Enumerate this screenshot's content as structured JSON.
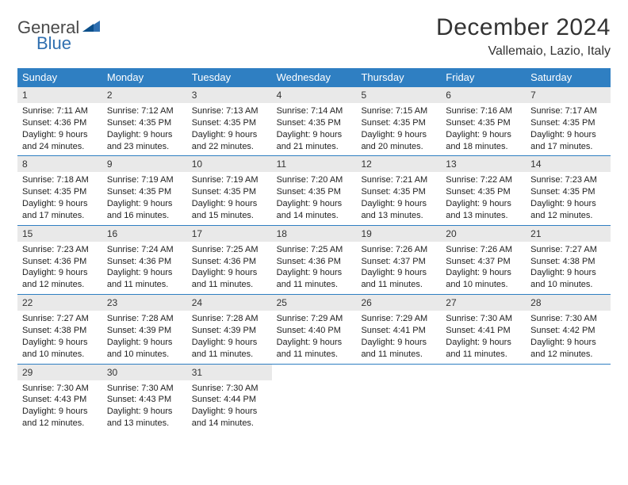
{
  "brand": {
    "part1": "General",
    "part2": "Blue"
  },
  "title": "December 2024",
  "location": "Vallemaio, Lazio, Italy",
  "colors": {
    "header_bar": "#2f7fc2",
    "divider": "#2f7fc2",
    "day_num_bg": "#e9e9e9",
    "logo_gray": "#4a4a4a",
    "logo_blue": "#2f6fb0",
    "text": "#202020",
    "background": "#ffffff"
  },
  "dow": [
    "Sunday",
    "Monday",
    "Tuesday",
    "Wednesday",
    "Thursday",
    "Friday",
    "Saturday"
  ],
  "weeks": [
    [
      {
        "n": "1",
        "sr": "7:11 AM",
        "ss": "4:36 PM",
        "dl": "9 hours and 24 minutes."
      },
      {
        "n": "2",
        "sr": "7:12 AM",
        "ss": "4:35 PM",
        "dl": "9 hours and 23 minutes."
      },
      {
        "n": "3",
        "sr": "7:13 AM",
        "ss": "4:35 PM",
        "dl": "9 hours and 22 minutes."
      },
      {
        "n": "4",
        "sr": "7:14 AM",
        "ss": "4:35 PM",
        "dl": "9 hours and 21 minutes."
      },
      {
        "n": "5",
        "sr": "7:15 AM",
        "ss": "4:35 PM",
        "dl": "9 hours and 20 minutes."
      },
      {
        "n": "6",
        "sr": "7:16 AM",
        "ss": "4:35 PM",
        "dl": "9 hours and 18 minutes."
      },
      {
        "n": "7",
        "sr": "7:17 AM",
        "ss": "4:35 PM",
        "dl": "9 hours and 17 minutes."
      }
    ],
    [
      {
        "n": "8",
        "sr": "7:18 AM",
        "ss": "4:35 PM",
        "dl": "9 hours and 17 minutes."
      },
      {
        "n": "9",
        "sr": "7:19 AM",
        "ss": "4:35 PM",
        "dl": "9 hours and 16 minutes."
      },
      {
        "n": "10",
        "sr": "7:19 AM",
        "ss": "4:35 PM",
        "dl": "9 hours and 15 minutes."
      },
      {
        "n": "11",
        "sr": "7:20 AM",
        "ss": "4:35 PM",
        "dl": "9 hours and 14 minutes."
      },
      {
        "n": "12",
        "sr": "7:21 AM",
        "ss": "4:35 PM",
        "dl": "9 hours and 13 minutes."
      },
      {
        "n": "13",
        "sr": "7:22 AM",
        "ss": "4:35 PM",
        "dl": "9 hours and 13 minutes."
      },
      {
        "n": "14",
        "sr": "7:23 AM",
        "ss": "4:35 PM",
        "dl": "9 hours and 12 minutes."
      }
    ],
    [
      {
        "n": "15",
        "sr": "7:23 AM",
        "ss": "4:36 PM",
        "dl": "9 hours and 12 minutes."
      },
      {
        "n": "16",
        "sr": "7:24 AM",
        "ss": "4:36 PM",
        "dl": "9 hours and 11 minutes."
      },
      {
        "n": "17",
        "sr": "7:25 AM",
        "ss": "4:36 PM",
        "dl": "9 hours and 11 minutes."
      },
      {
        "n": "18",
        "sr": "7:25 AM",
        "ss": "4:36 PM",
        "dl": "9 hours and 11 minutes."
      },
      {
        "n": "19",
        "sr": "7:26 AM",
        "ss": "4:37 PM",
        "dl": "9 hours and 11 minutes."
      },
      {
        "n": "20",
        "sr": "7:26 AM",
        "ss": "4:37 PM",
        "dl": "9 hours and 10 minutes."
      },
      {
        "n": "21",
        "sr": "7:27 AM",
        "ss": "4:38 PM",
        "dl": "9 hours and 10 minutes."
      }
    ],
    [
      {
        "n": "22",
        "sr": "7:27 AM",
        "ss": "4:38 PM",
        "dl": "9 hours and 10 minutes."
      },
      {
        "n": "23",
        "sr": "7:28 AM",
        "ss": "4:39 PM",
        "dl": "9 hours and 10 minutes."
      },
      {
        "n": "24",
        "sr": "7:28 AM",
        "ss": "4:39 PM",
        "dl": "9 hours and 11 minutes."
      },
      {
        "n": "25",
        "sr": "7:29 AM",
        "ss": "4:40 PM",
        "dl": "9 hours and 11 minutes."
      },
      {
        "n": "26",
        "sr": "7:29 AM",
        "ss": "4:41 PM",
        "dl": "9 hours and 11 minutes."
      },
      {
        "n": "27",
        "sr": "7:30 AM",
        "ss": "4:41 PM",
        "dl": "9 hours and 11 minutes."
      },
      {
        "n": "28",
        "sr": "7:30 AM",
        "ss": "4:42 PM",
        "dl": "9 hours and 12 minutes."
      }
    ],
    [
      {
        "n": "29",
        "sr": "7:30 AM",
        "ss": "4:43 PM",
        "dl": "9 hours and 12 minutes."
      },
      {
        "n": "30",
        "sr": "7:30 AM",
        "ss": "4:43 PM",
        "dl": "9 hours and 13 minutes."
      },
      {
        "n": "31",
        "sr": "7:30 AM",
        "ss": "4:44 PM",
        "dl": "9 hours and 14 minutes."
      },
      null,
      null,
      null,
      null
    ]
  ],
  "labels": {
    "sunrise": "Sunrise: ",
    "sunset": "Sunset: ",
    "daylight": "Daylight: "
  }
}
